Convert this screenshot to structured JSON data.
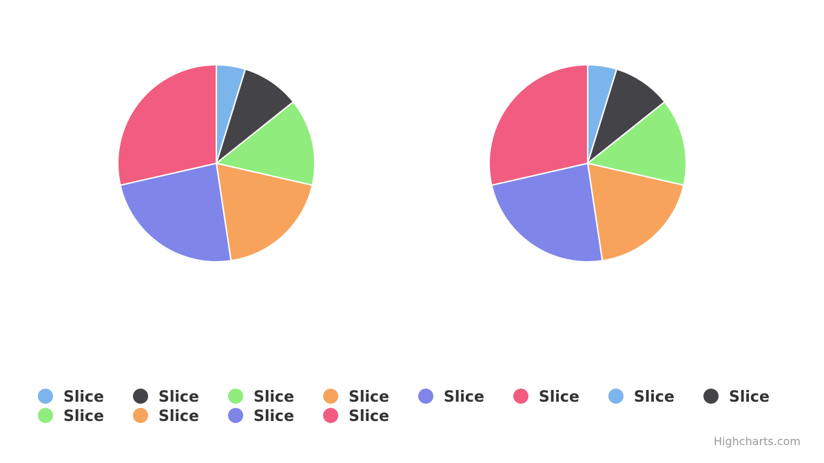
{
  "chart_data": [
    {
      "type": "pie",
      "categories": [
        "Slice",
        "Slice",
        "Slice",
        "Slice",
        "Slice",
        "Slice"
      ],
      "values": [
        5,
        10,
        15,
        20,
        25,
        30
      ],
      "colors": [
        "#7cb5ec",
        "#434348",
        "#90ed7d",
        "#f7a35c",
        "#8085e9",
        "#f15c80"
      ],
      "title": ""
    },
    {
      "type": "pie",
      "categories": [
        "Slice",
        "Slice",
        "Slice",
        "Slice",
        "Slice",
        "Slice"
      ],
      "values": [
        5,
        10,
        15,
        20,
        25,
        30
      ],
      "colors": [
        "#7cb5ec",
        "#434348",
        "#90ed7d",
        "#f7a35c",
        "#8085e9",
        "#f15c80"
      ],
      "title": ""
    }
  ],
  "legend": {
    "placement": "bottom",
    "items": [
      {
        "label": "Slice",
        "color": "#7cb5ec"
      },
      {
        "label": "Slice",
        "color": "#434348"
      },
      {
        "label": "Slice",
        "color": "#90ed7d"
      },
      {
        "label": "Slice",
        "color": "#f7a35c"
      },
      {
        "label": "Slice",
        "color": "#8085e9"
      },
      {
        "label": "Slice",
        "color": "#f15c80"
      },
      {
        "label": "Slice",
        "color": "#7cb5ec"
      },
      {
        "label": "Slice",
        "color": "#434348"
      },
      {
        "label": "Slice",
        "color": "#90ed7d"
      },
      {
        "label": "Slice",
        "color": "#f7a35c"
      },
      {
        "label": "Slice",
        "color": "#8085e9"
      },
      {
        "label": "Slice",
        "color": "#f15c80"
      }
    ]
  },
  "credits": {
    "text": "Highcharts.com"
  }
}
